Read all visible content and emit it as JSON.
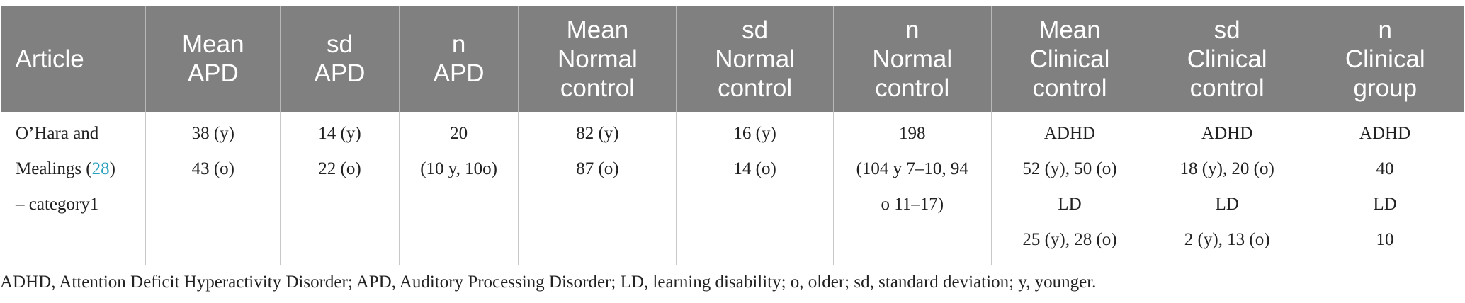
{
  "table": {
    "headers": [
      [
        "Article"
      ],
      [
        "Mean",
        "APD"
      ],
      [
        "sd",
        "APD"
      ],
      [
        "n",
        "APD"
      ],
      [
        "Mean",
        "Normal",
        "control"
      ],
      [
        "sd",
        "Normal",
        "control"
      ],
      [
        "n",
        "Normal",
        "control"
      ],
      [
        "Mean",
        "Clinical",
        "control"
      ],
      [
        "sd",
        "Clinical",
        "control"
      ],
      [
        "n",
        "Clinical",
        "group"
      ]
    ],
    "row": {
      "article": {
        "line1": "O’Hara and",
        "line2_prefix": "Mealings (",
        "ref": "28",
        "line2_suffix": ")",
        "line3": "– category1"
      },
      "mean_apd": [
        "38 (y)",
        "43 (o)"
      ],
      "sd_apd": [
        "14 (y)",
        "22 (o)"
      ],
      "n_apd": [
        "20",
        "(10 y, 10o)"
      ],
      "mean_normal": [
        "82 (y)",
        "87 (o)"
      ],
      "sd_normal": [
        "16 (y)",
        "14 (o)"
      ],
      "n_normal": [
        "198",
        "(104 y 7–10, 94",
        "o 11–17)"
      ],
      "mean_clinical": [
        "ADHD",
        "52 (y), 50 (o)",
        "LD",
        "25 (y), 28 (o)"
      ],
      "sd_clinical": [
        "ADHD",
        "18 (y), 20 (o)",
        "LD",
        "2 (y), 13 (o)"
      ],
      "n_clinical": [
        "ADHD",
        "40",
        "LD",
        "10"
      ]
    }
  },
  "footnote": "ADHD, Attention Deficit Hyperactivity Disorder; APD, Auditory Processing Disorder; LD, learning disability; o, older; sd, standard deviation; y, younger.",
  "colors": {
    "header_bg": "#808080",
    "header_text": "#ffffff",
    "ref_link": "#2a9fbf"
  }
}
